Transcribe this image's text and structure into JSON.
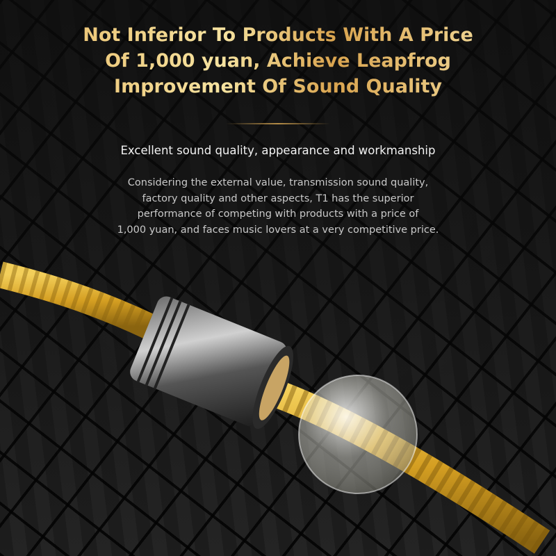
{
  "headline": {
    "lines": [
      "Not Inferior To Products With A Price",
      "Of 1,000 yuan, Achieve Leapfrog",
      "Improvement Of Sound Quality"
    ]
  },
  "subtitle": "Excellent sound quality, appearance and workmanship",
  "description": {
    "lines": [
      "Considering the external value, transmission sound quality,",
      "factory quality and other aspects, T1 has the superior",
      "performance of competing with products with a price of",
      "1,000 yuan, and faces music lovers at a very competitive price."
    ]
  },
  "colors": {
    "gold": "#e7b763",
    "cable": "#d9a52a",
    "background": "#161616"
  }
}
